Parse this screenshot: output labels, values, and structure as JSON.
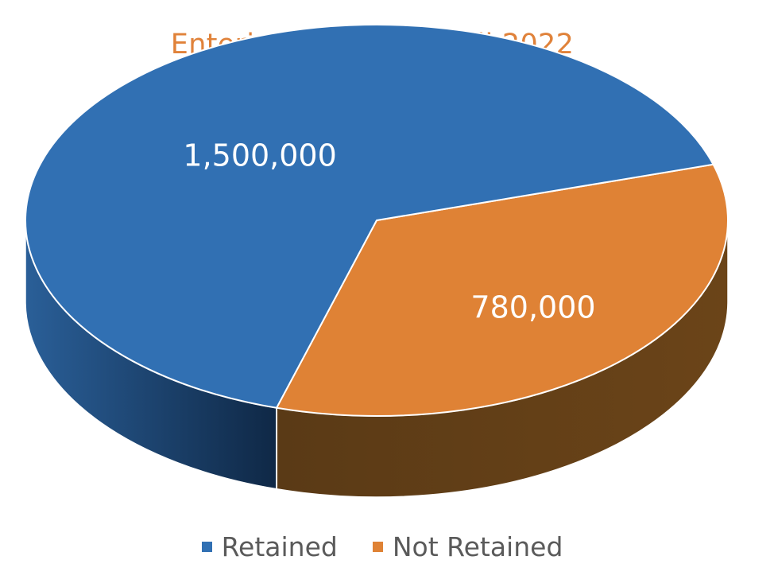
{
  "chart_data": {
    "type": "pie",
    "title": "Entering Freshmen Fall 2022",
    "series": [
      {
        "name": "Retained",
        "value": 1500000,
        "label": "1,500,000",
        "color": "#3170B3"
      },
      {
        "name": "Not Retained",
        "value": 780000,
        "label": "780,000",
        "color": "#DF8235"
      }
    ],
    "legend_position": "bottom",
    "style": "3d"
  }
}
